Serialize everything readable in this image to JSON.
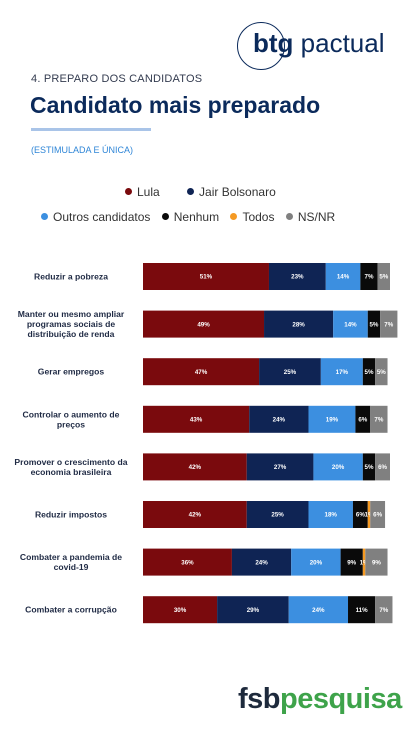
{
  "brand": {
    "logo_bold": "btg",
    "logo_light": "pactual"
  },
  "header": {
    "section": "4. PREPARO DOS CANDIDATOS",
    "title": "Candidato mais preparado",
    "subtitle": "(ESTIMULADA E ÚNICA)"
  },
  "footer": {
    "logo_a": "fsb",
    "logo_b": "pesquisa"
  },
  "colors": {
    "Lula": "#7a0a0d",
    "Jair Bolsonaro": "#0f2454",
    "Outros candidatos": "#3c8fe0",
    "Nenhum": "#0a0a0a",
    "Todos": "#f59a23",
    "NS/NR": "#808080"
  },
  "chart_data": {
    "type": "bar",
    "orientation": "horizontal",
    "stacked": true,
    "legend": [
      "Lula",
      "Jair Bolsonaro",
      "Outros candidatos",
      "Nenhum",
      "Todos",
      "NS/NR"
    ],
    "legend_position": "top",
    "categories": [
      "Reduzir a pobreza",
      "Manter ou mesmo ampliar programas sociais de distribuição de renda",
      "Gerar empregos",
      "Controlar o aumento de preços",
      "Promover o crescimento da economia brasileira",
      "Reduzir impostos",
      "Combater a pandemia de covid-19",
      "Combater a corrupção"
    ],
    "category_lines": [
      [
        "Reduzir a pobreza"
      ],
      [
        "Manter ou mesmo ampliar",
        "programas sociais de",
        "distribuição de renda"
      ],
      [
        "Gerar empregos"
      ],
      [
        "Controlar o aumento de",
        "preços"
      ],
      [
        "Promover o crescimento da",
        "economia brasileira"
      ],
      [
        "Reduzir impostos"
      ],
      [
        "Combater a pandemia de",
        "covid-19"
      ],
      [
        "Combater a corrupção"
      ]
    ],
    "series": [
      {
        "name": "Lula",
        "values": [
          51,
          49,
          47,
          43,
          42,
          42,
          36,
          30
        ]
      },
      {
        "name": "Jair Bolsonaro",
        "values": [
          23,
          28,
          25,
          24,
          27,
          25,
          24,
          29
        ]
      },
      {
        "name": "Outros candidatos",
        "values": [
          14,
          14,
          17,
          19,
          20,
          18,
          20,
          24
        ]
      },
      {
        "name": "Nenhum",
        "values": [
          7,
          5,
          5,
          6,
          5,
          6,
          9,
          11
        ]
      },
      {
        "name": "Todos",
        "values": [
          0,
          0,
          0,
          0,
          0,
          1,
          1,
          0
        ]
      },
      {
        "name": "NS/NR",
        "values": [
          5,
          7,
          5,
          7,
          6,
          6,
          9,
          7
        ]
      }
    ],
    "xlim": [
      0,
      100
    ],
    "value_suffix": "%"
  }
}
